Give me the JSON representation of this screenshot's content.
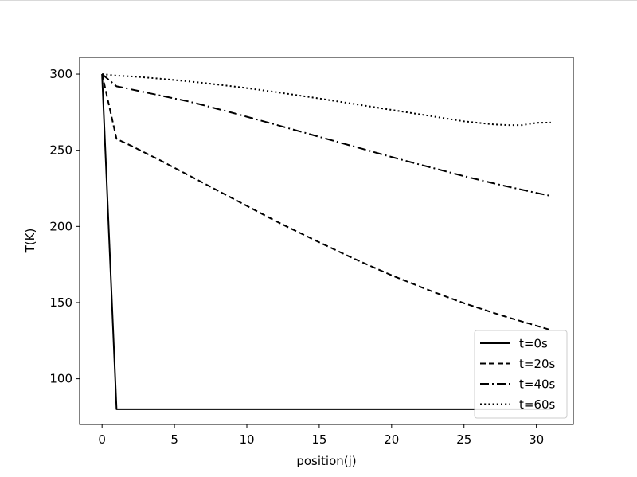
{
  "chart_data": {
    "type": "line",
    "title": "",
    "xlabel": "position(j)",
    "ylabel": "T(K)",
    "xlim": [
      -1.55,
      32.55
    ],
    "ylim": [
      70,
      311
    ],
    "xticks": [
      0,
      5,
      10,
      15,
      20,
      25,
      30
    ],
    "yticks": [
      100,
      150,
      200,
      250,
      300
    ],
    "grid": false,
    "legend_position": "lower-right",
    "x": [
      0,
      1,
      2,
      3,
      4,
      5,
      6,
      7,
      8,
      9,
      10,
      11,
      12,
      13,
      14,
      15,
      16,
      17,
      18,
      19,
      20,
      21,
      22,
      23,
      24,
      25,
      26,
      27,
      28,
      29,
      30,
      31
    ],
    "series": [
      {
        "name": "t=0s",
        "style": "solid",
        "values": [
          300,
          80,
          80,
          80,
          80,
          80,
          80,
          80,
          80,
          80,
          80,
          80,
          80,
          80,
          80,
          80,
          80,
          80,
          80,
          80,
          80,
          80,
          80,
          80,
          80,
          80,
          80,
          80,
          80,
          80,
          80,
          80
        ]
      },
      {
        "name": "t=20s",
        "style": "dashed",
        "values": [
          300,
          257.5,
          253,
          248.2,
          243.5,
          238.5,
          233.5,
          228.5,
          223.5,
          218.5,
          213.5,
          208.5,
          203.5,
          198.8,
          194.2,
          189.6,
          185.1,
          180.6,
          176.3,
          172.1,
          167.9,
          164.1,
          160.3,
          156.6,
          153.1,
          149.6,
          146.5,
          143.4,
          140.4,
          137.6,
          134.8,
          132
        ]
      },
      {
        "name": "t=40s",
        "style": "dashdot",
        "values": [
          300,
          292,
          290,
          288,
          286,
          284,
          282,
          279.6,
          277.1,
          274.6,
          272,
          269.4,
          266.8,
          264.1,
          261.5,
          258.8,
          256.2,
          253.5,
          250.9,
          248.2,
          245.6,
          243,
          240.5,
          238,
          235.5,
          233,
          230.7,
          228.4,
          226.2,
          224.1,
          222,
          220
        ]
      },
      {
        "name": "t=60s",
        "style": "dotted",
        "values": [
          300,
          299,
          298.5,
          297.8,
          297,
          296.1,
          295.2,
          294.2,
          293.1,
          292,
          290.8,
          289.5,
          288.2,
          286.8,
          285.4,
          284,
          282.5,
          281,
          279.5,
          278,
          276.5,
          275,
          273.5,
          272,
          270.5,
          269,
          268,
          267,
          266.5,
          266.5,
          268,
          268.2
        ]
      }
    ]
  }
}
